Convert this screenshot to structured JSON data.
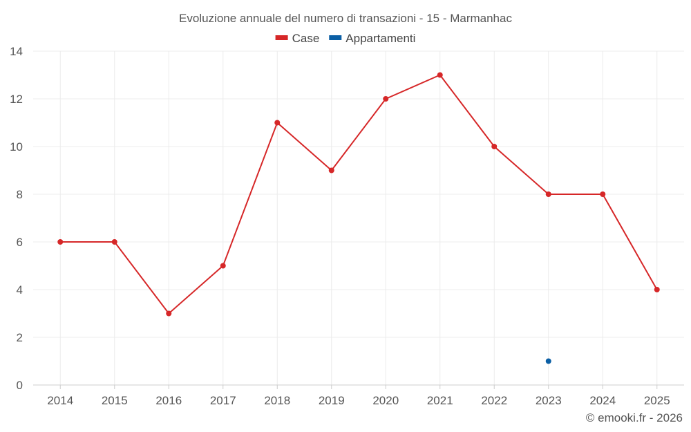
{
  "chart_data": {
    "type": "line",
    "title": "Evoluzione annuale del numero di transazioni - 15 - Marmanhac",
    "categories": [
      "2014",
      "2015",
      "2016",
      "2017",
      "2018",
      "2019",
      "2020",
      "2021",
      "2022",
      "2023",
      "2024",
      "2025"
    ],
    "series": [
      {
        "name": "Case",
        "color": "#d62728",
        "values": [
          6,
          6,
          3,
          5,
          11,
          9,
          12,
          13,
          10,
          8,
          8,
          4
        ]
      },
      {
        "name": "Appartamenti",
        "color": "#0b5fa5",
        "values": [
          null,
          null,
          null,
          null,
          null,
          null,
          null,
          null,
          null,
          1,
          null,
          null
        ]
      }
    ],
    "ylim": [
      0,
      14
    ],
    "yticks": [
      0,
      2,
      4,
      6,
      8,
      10,
      12,
      14
    ],
    "grid": true,
    "legend_position": "top-center",
    "xlabel": "",
    "ylabel": ""
  },
  "credit": "© emooki.fr - 2026"
}
